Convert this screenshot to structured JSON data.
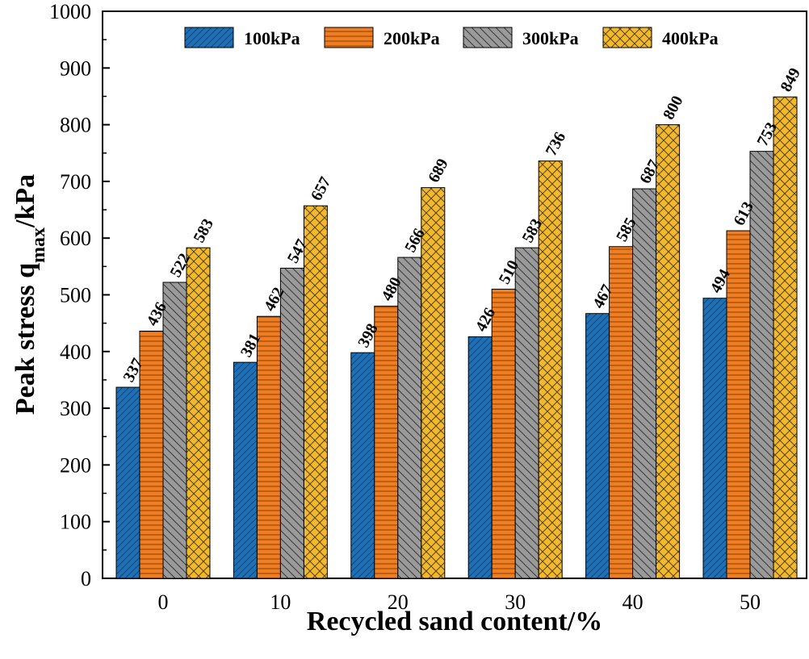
{
  "chart_data": {
    "type": "bar",
    "title": "",
    "xlabel": "Recycled sand content/%",
    "ylabel": {
      "main": "Peak stress q",
      "sub": "max",
      "suffix": "/kPa"
    },
    "categories": [
      "0",
      "10",
      "20",
      "30",
      "40",
      "50"
    ],
    "ylim": [
      0,
      1000
    ],
    "yticks": [
      "0",
      "100",
      "200",
      "300",
      "400",
      "500",
      "600",
      "700",
      "800",
      "900",
      "1000"
    ],
    "grid": false,
    "legend_position": "top",
    "series": [
      {
        "name": "100kPa",
        "color": "#1f6fb4",
        "pattern": "diagonal-forward",
        "values": [
          337,
          381,
          398,
          426,
          467,
          494
        ]
      },
      {
        "name": "200kPa",
        "color": "#f07d22",
        "pattern": "horizontal",
        "values": [
          436,
          462,
          480,
          510,
          585,
          613
        ]
      },
      {
        "name": "300kPa",
        "color": "#9a9a9a",
        "pattern": "diagonal-backward",
        "values": [
          522,
          547,
          566,
          583,
          687,
          753
        ]
      },
      {
        "name": "400kPa",
        "color": "#f1b930",
        "pattern": "crosshatch",
        "values": [
          583,
          657,
          689,
          736,
          800,
          849
        ]
      }
    ]
  }
}
